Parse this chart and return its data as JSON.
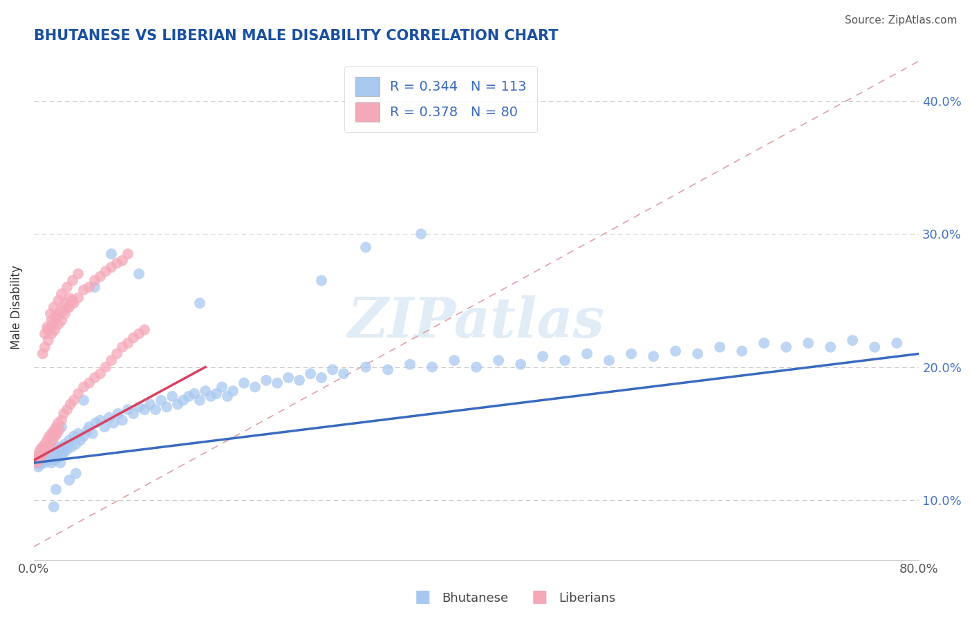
{
  "title": "BHUTANESE VS LIBERIAN MALE DISABILITY CORRELATION CHART",
  "source": "Source: ZipAtlas.com",
  "ylabel": "Male Disability",
  "xlim": [
    0.0,
    0.8
  ],
  "ylim": [
    0.055,
    0.435
  ],
  "xtick_positions": [
    0.0,
    0.8
  ],
  "xtick_labels": [
    "0.0%",
    "80.0%"
  ],
  "ytick_positions": [
    0.1,
    0.2,
    0.3,
    0.4
  ],
  "ytick_labels": [
    "10.0%",
    "20.0%",
    "30.0%",
    "40.0%"
  ],
  "blue_color": "#a8c8f0",
  "pink_color": "#f5a8b8",
  "blue_line_color": "#3a6abf",
  "pink_line_color": "#d94060",
  "legend_text_color": "#3a6abf",
  "title_color": "#1a50a0",
  "r_blue": 0.344,
  "n_blue": 113,
  "r_pink": 0.378,
  "n_pink": 80,
  "blue_trend_x": [
    0.0,
    0.8
  ],
  "blue_trend_y": [
    0.128,
    0.21
  ],
  "pink_trend_x": [
    0.0,
    0.155
  ],
  "pink_trend_y": [
    0.13,
    0.2
  ],
  "ref_line_x": [
    0.0,
    0.8
  ],
  "ref_line_y": [
    0.065,
    0.43
  ],
  "watermark": "ZIPatlas",
  "background_color": "#ffffff",
  "grid_color": "#cccccc",
  "blue_x": [
    0.002,
    0.003,
    0.004,
    0.005,
    0.006,
    0.007,
    0.008,
    0.009,
    0.01,
    0.011,
    0.012,
    0.013,
    0.014,
    0.015,
    0.016,
    0.017,
    0.018,
    0.019,
    0.02,
    0.021,
    0.022,
    0.023,
    0.024,
    0.025,
    0.026,
    0.027,
    0.028,
    0.03,
    0.032,
    0.034,
    0.036,
    0.038,
    0.04,
    0.042,
    0.045,
    0.048,
    0.05,
    0.053,
    0.056,
    0.06,
    0.064,
    0.068,
    0.072,
    0.076,
    0.08,
    0.085,
    0.09,
    0.095,
    0.1,
    0.105,
    0.11,
    0.115,
    0.12,
    0.125,
    0.13,
    0.135,
    0.14,
    0.145,
    0.15,
    0.155,
    0.16,
    0.165,
    0.17,
    0.175,
    0.18,
    0.19,
    0.2,
    0.21,
    0.22,
    0.23,
    0.24,
    0.25,
    0.26,
    0.27,
    0.28,
    0.3,
    0.32,
    0.34,
    0.36,
    0.38,
    0.4,
    0.42,
    0.44,
    0.46,
    0.48,
    0.5,
    0.52,
    0.54,
    0.56,
    0.58,
    0.6,
    0.62,
    0.64,
    0.66,
    0.68,
    0.7,
    0.72,
    0.74,
    0.76,
    0.78,
    0.3,
    0.26,
    0.35,
    0.15,
    0.095,
    0.07,
    0.055,
    0.045,
    0.038,
    0.032,
    0.025,
    0.02,
    0.018
  ],
  "blue_y": [
    0.13,
    0.128,
    0.125,
    0.132,
    0.127,
    0.131,
    0.129,
    0.133,
    0.128,
    0.135,
    0.132,
    0.134,
    0.13,
    0.136,
    0.128,
    0.133,
    0.138,
    0.13,
    0.135,
    0.14,
    0.132,
    0.138,
    0.128,
    0.134,
    0.14,
    0.135,
    0.142,
    0.138,
    0.145,
    0.14,
    0.148,
    0.142,
    0.15,
    0.145,
    0.148,
    0.152,
    0.155,
    0.15,
    0.158,
    0.16,
    0.155,
    0.162,
    0.158,
    0.165,
    0.16,
    0.168,
    0.165,
    0.17,
    0.168,
    0.172,
    0.168,
    0.175,
    0.17,
    0.178,
    0.172,
    0.175,
    0.178,
    0.18,
    0.175,
    0.182,
    0.178,
    0.18,
    0.185,
    0.178,
    0.182,
    0.188,
    0.185,
    0.19,
    0.188,
    0.192,
    0.19,
    0.195,
    0.192,
    0.198,
    0.195,
    0.2,
    0.198,
    0.202,
    0.2,
    0.205,
    0.2,
    0.205,
    0.202,
    0.208,
    0.205,
    0.21,
    0.205,
    0.21,
    0.208,
    0.212,
    0.21,
    0.215,
    0.212,
    0.218,
    0.215,
    0.218,
    0.215,
    0.22,
    0.215,
    0.218,
    0.29,
    0.265,
    0.3,
    0.248,
    0.27,
    0.285,
    0.26,
    0.175,
    0.12,
    0.115,
    0.155,
    0.108,
    0.095
  ],
  "pink_x": [
    0.002,
    0.003,
    0.004,
    0.005,
    0.006,
    0.007,
    0.008,
    0.009,
    0.01,
    0.011,
    0.012,
    0.013,
    0.014,
    0.015,
    0.016,
    0.017,
    0.018,
    0.019,
    0.02,
    0.021,
    0.022,
    0.023,
    0.025,
    0.027,
    0.03,
    0.033,
    0.036,
    0.04,
    0.045,
    0.05,
    0.055,
    0.06,
    0.065,
    0.07,
    0.075,
    0.08,
    0.085,
    0.09,
    0.095,
    0.1,
    0.015,
    0.018,
    0.022,
    0.025,
    0.03,
    0.035,
    0.04,
    0.012,
    0.016,
    0.02,
    0.024,
    0.028,
    0.032,
    0.01,
    0.013,
    0.017,
    0.021,
    0.026,
    0.03,
    0.035,
    0.008,
    0.01,
    0.013,
    0.016,
    0.019,
    0.022,
    0.025,
    0.028,
    0.032,
    0.036,
    0.04,
    0.045,
    0.05,
    0.055,
    0.06,
    0.065,
    0.07,
    0.075,
    0.08,
    0.085
  ],
  "pink_y": [
    0.128,
    0.132,
    0.135,
    0.13,
    0.138,
    0.134,
    0.14,
    0.136,
    0.142,
    0.138,
    0.145,
    0.14,
    0.148,
    0.143,
    0.15,
    0.145,
    0.152,
    0.148,
    0.155,
    0.15,
    0.158,
    0.153,
    0.16,
    0.165,
    0.168,
    0.172,
    0.175,
    0.18,
    0.185,
    0.188,
    0.192,
    0.195,
    0.2,
    0.205,
    0.21,
    0.215,
    0.218,
    0.222,
    0.225,
    0.228,
    0.24,
    0.245,
    0.25,
    0.255,
    0.26,
    0.265,
    0.27,
    0.23,
    0.235,
    0.238,
    0.242,
    0.248,
    0.252,
    0.225,
    0.228,
    0.232,
    0.238,
    0.242,
    0.245,
    0.25,
    0.21,
    0.215,
    0.22,
    0.225,
    0.228,
    0.232,
    0.235,
    0.24,
    0.245,
    0.248,
    0.252,
    0.258,
    0.26,
    0.265,
    0.268,
    0.272,
    0.275,
    0.278,
    0.28,
    0.285
  ]
}
